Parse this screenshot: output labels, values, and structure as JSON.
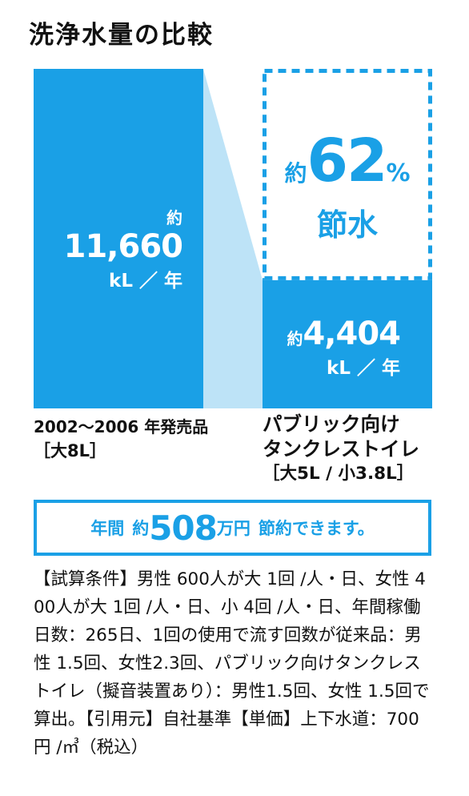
{
  "title": "洗浄水量の比較",
  "chart_data": {
    "type": "bar",
    "title": "洗浄水量の比較",
    "unit": "kL／年",
    "categories": [
      [
        "2002〜2006 年発売品",
        "［大8L］"
      ],
      [
        "パブリック向け",
        "タンクレストイレ",
        "［大5L / 小3.8L］"
      ]
    ],
    "values": [
      11660,
      4404
    ],
    "data_labels": [
      {
        "prefix": "約",
        "value": "11,660",
        "unit": "kL ／ 年"
      },
      {
        "prefix": "約",
        "value": "4,404",
        "unit": "kL ／ 年"
      }
    ],
    "annotation": {
      "prefix": "約",
      "value": "62",
      "suffix": "%",
      "line2": "節水"
    },
    "ylim": [
      0,
      11660
    ],
    "colors": {
      "bar": "#1aa0e6",
      "connector": "#bde3f7",
      "savings_outline": "#1aa0e6"
    }
  },
  "summary": {
    "prefix": "年間",
    "approx": "約",
    "amount": "508",
    "unit": "万円",
    "suffix": "節約できます。"
  },
  "conditions": "【試算条件】男性 600人が大 1回 /人・日、女性 400人が大 1回 /人・日、小 4回 /人・日、年間稼働日数：265日、1回の使用で流す回数が従来品：男性 1.5回、女性2.3回、パブリック向けタンクレストイレ（擬音装置あり）：男性1.5回、女性 1.5回で算出。【引用元】自社基準【単価】上下水道：700円 /㎥（税込）"
}
